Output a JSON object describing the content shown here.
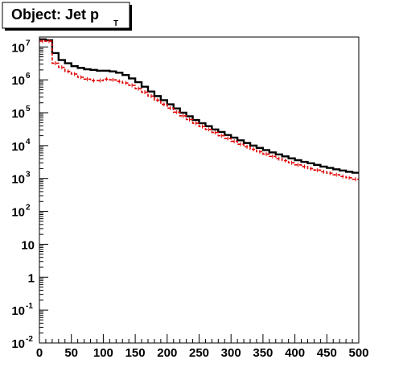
{
  "chart_data": {
    "type": "line",
    "title": "Object: Jet p",
    "title_subscript": "T",
    "xlabel": "",
    "ylabel": "",
    "xlim": [
      0,
      500
    ],
    "ylim": [
      0.01,
      20000000
    ],
    "yscale": "log",
    "grid": false,
    "legend": "none",
    "x_ticks": [
      0,
      50,
      100,
      150,
      200,
      250,
      300,
      350,
      400,
      450,
      500
    ],
    "y_ticks": [
      {
        "value": 0.01,
        "base": "10",
        "exp": "-2"
      },
      {
        "value": 0.1,
        "base": "10",
        "exp": "-1"
      },
      {
        "value": 1,
        "base": "1",
        "exp": ""
      },
      {
        "value": 10,
        "base": "10",
        "exp": ""
      },
      {
        "value": 100,
        "base": "10",
        "exp": "2"
      },
      {
        "value": 1000,
        "base": "10",
        "exp": "3"
      },
      {
        "value": 10000,
        "base": "10",
        "exp": "4"
      },
      {
        "value": 100000,
        "base": "10",
        "exp": "5"
      },
      {
        "value": 1000000,
        "base": "10",
        "exp": "6"
      },
      {
        "value": 10000000,
        "base": "10",
        "exp": "7"
      }
    ],
    "bin_width": 10,
    "x": [
      0,
      10,
      20,
      30,
      40,
      50,
      60,
      70,
      80,
      90,
      100,
      110,
      120,
      130,
      140,
      150,
      160,
      170,
      180,
      190,
      200,
      210,
      220,
      230,
      240,
      250,
      260,
      270,
      280,
      290,
      300,
      310,
      320,
      330,
      340,
      350,
      360,
      370,
      380,
      390,
      400,
      410,
      420,
      430,
      440,
      450,
      460,
      470,
      480,
      490
    ],
    "series": [
      {
        "color": "#000000",
        "style": "solid",
        "values": [
          17000000,
          16000000,
          6500000,
          4000000,
          3200000,
          2600000,
          2300000,
          2100000,
          2000000,
          1900000,
          1900000,
          1800000,
          1650000,
          1400000,
          1100000,
          850000,
          620000,
          440000,
          320000,
          240000,
          180000,
          135000,
          100000,
          78000,
          60000,
          48000,
          39000,
          31000,
          26000,
          21000,
          17500,
          14500,
          12000,
          10000,
          8500,
          7300,
          6200,
          5400,
          4700,
          4100,
          3600,
          3200,
          2900,
          2600,
          2300,
          2100,
          1900,
          1750,
          1600,
          1500
        ]
      },
      {
        "color": "#e00000",
        "style": "dashed-errorbars",
        "values": [
          15000000,
          15000000,
          3200000,
          2400000,
          1800000,
          1500000,
          1200000,
          1050000,
          950000,
          950000,
          1050000,
          1000000,
          900000,
          800000,
          680000,
          540000,
          420000,
          320000,
          240000,
          180000,
          138000,
          104000,
          80000,
          62000,
          48000,
          38000,
          31000,
          25000,
          20000,
          16500,
          13500,
          11000,
          9200,
          7700,
          6500,
          5500,
          4700,
          4000,
          3500,
          3000,
          2600,
          2300,
          2000,
          1800,
          1600,
          1450,
          1300,
          1150,
          1050,
          950
        ]
      }
    ]
  }
}
